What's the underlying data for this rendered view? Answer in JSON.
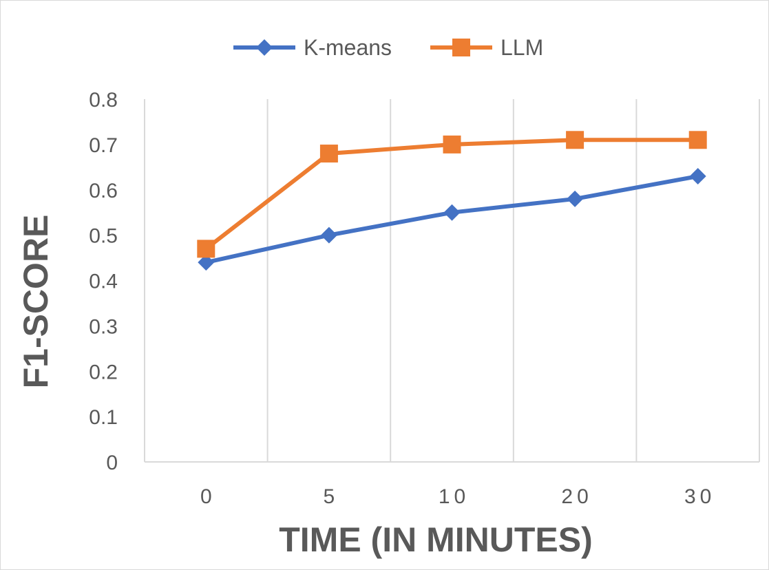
{
  "chart_data": {
    "type": "line",
    "categories": [
      "0",
      "5",
      "10",
      "20",
      "30"
    ],
    "series": [
      {
        "name": "K-means",
        "values": [
          0.44,
          0.5,
          0.55,
          0.58,
          0.63
        ],
        "color": "#4472C4",
        "marker": "diamond"
      },
      {
        "name": "LLM",
        "values": [
          0.47,
          0.68,
          0.7,
          0.71,
          0.71
        ],
        "color": "#ED7D31",
        "marker": "square"
      }
    ],
    "title": "",
    "xlabel": "TIME (IN MINUTES)",
    "ylabel": "F1-SCORE",
    "ylim": [
      0,
      0.8
    ],
    "yticks": [
      "0",
      "0.1",
      "0.2",
      "0.3",
      "0.4",
      "0.5",
      "0.6",
      "0.7",
      "0.8"
    ],
    "grid": "vertical",
    "legend_position": "top"
  }
}
